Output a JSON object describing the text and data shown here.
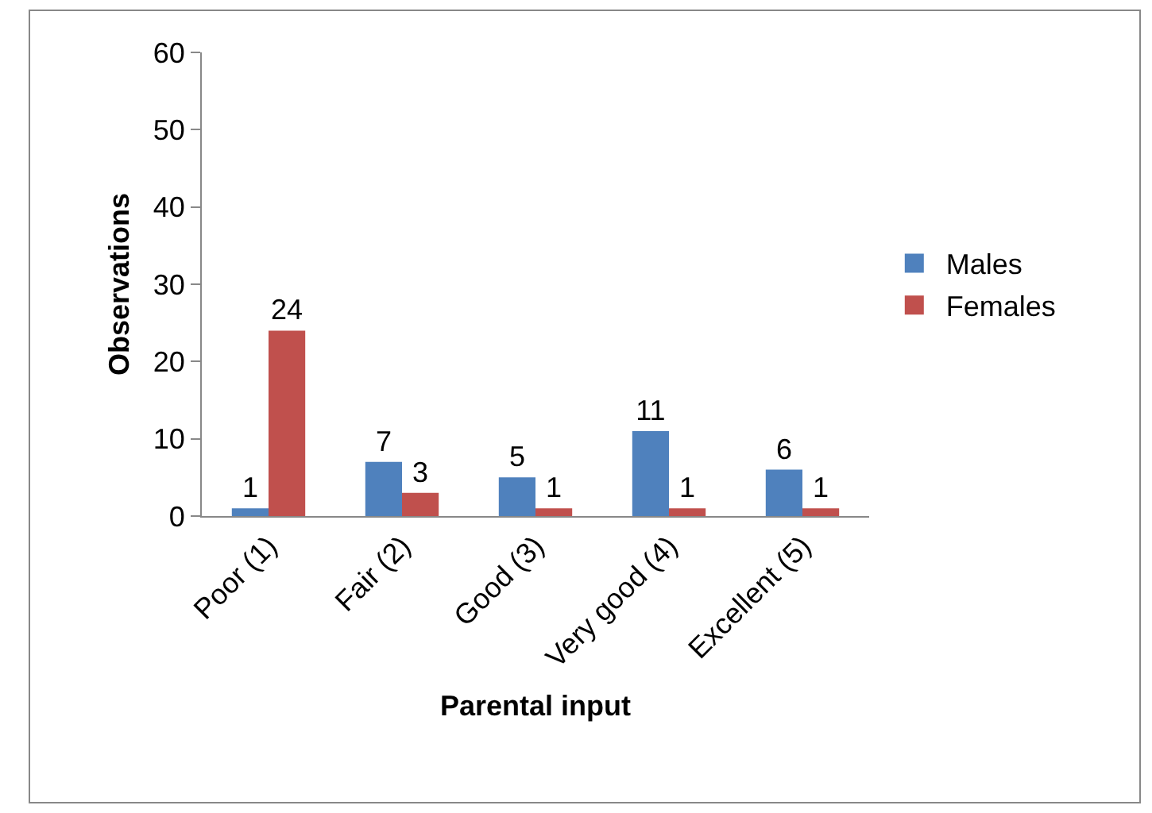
{
  "chart_data": {
    "type": "bar",
    "xlabel": "Parental input",
    "ylabel": "Observations",
    "categories": [
      "Poor (1)",
      "Fair (2)",
      "Good (3)",
      "Very good (4)",
      "Excellent (5)"
    ],
    "series": [
      {
        "name": "Males",
        "color": "#4f81bd",
        "values": [
          1,
          7,
          5,
          11,
          6
        ]
      },
      {
        "name": "Females",
        "color": "#c0504d",
        "values": [
          24,
          3,
          1,
          1,
          1
        ]
      }
    ],
    "ylim": [
      0,
      60
    ],
    "yticks": [
      0,
      10,
      20,
      30,
      40,
      50,
      60
    ],
    "grid": false,
    "legend": "right",
    "data_labels": true
  }
}
